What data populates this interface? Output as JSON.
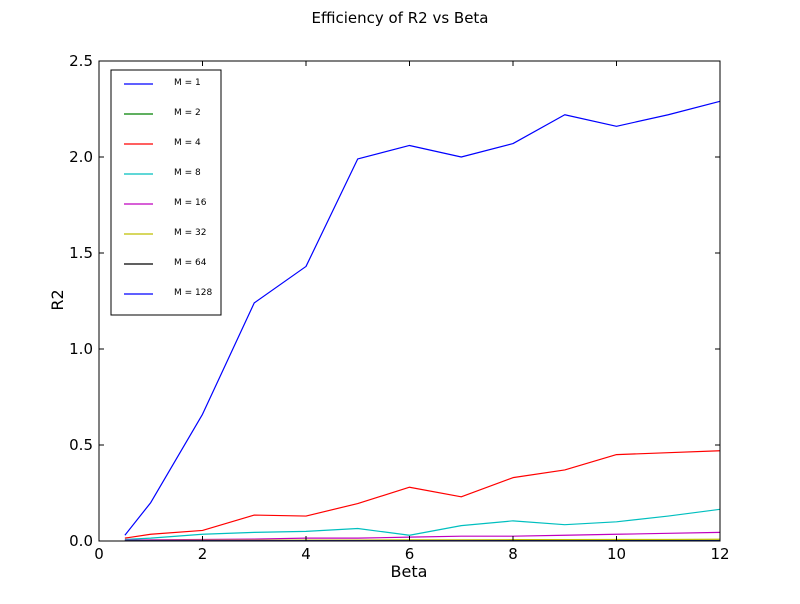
{
  "chart_data": {
    "type": "line",
    "title": "Efficiency of R2 vs Beta",
    "xlabel": "Beta",
    "ylabel": "R2",
    "xlim": [
      0,
      12
    ],
    "ylim": [
      0,
      2.5
    ],
    "xticks": [
      0,
      2,
      4,
      6,
      8,
      10,
      12
    ],
    "xtick_labels": [
      "0",
      "2",
      "4",
      "6",
      "8",
      "10",
      "12"
    ],
    "yticks": [
      0,
      0.5,
      1.0,
      1.5,
      2.0,
      2.5
    ],
    "ytick_labels": [
      "0.0",
      "0.5",
      "1.0",
      "1.5",
      "2.0",
      "2.5"
    ],
    "grid": false,
    "legend_position": "top-left",
    "x": [
      0.5,
      1,
      2,
      3,
      4,
      5,
      6,
      7,
      8,
      9,
      10,
      11,
      12
    ],
    "series": [
      {
        "name": "M = 1",
        "color": "#0000ff",
        "values": [
          0.03,
          0.2,
          0.66,
          1.24,
          1.43,
          1.99,
          2.06,
          2.0,
          2.07,
          2.22,
          2.16,
          2.22,
          2.29
        ]
      },
      {
        "name": "M = 2",
        "color": "#008000",
        "values": [
          0.003,
          0.003,
          0.003,
          0.003,
          0.003,
          0.003,
          0.003,
          0.003,
          0.003,
          0.003,
          0.003,
          0.003,
          0.003
        ]
      },
      {
        "name": "M = 4",
        "color": "#ff0000",
        "values": [
          0.015,
          0.035,
          0.055,
          0.135,
          0.13,
          0.195,
          0.28,
          0.23,
          0.33,
          0.37,
          0.45,
          0.46,
          0.47
        ]
      },
      {
        "name": "M = 8",
        "color": "#00bfbf",
        "values": [
          0.008,
          0.015,
          0.035,
          0.045,
          0.05,
          0.065,
          0.03,
          0.08,
          0.105,
          0.085,
          0.1,
          0.13,
          0.165
        ]
      },
      {
        "name": "M = 16",
        "color": "#bf00bf",
        "values": [
          0.004,
          0.006,
          0.008,
          0.01,
          0.015,
          0.015,
          0.02,
          0.025,
          0.025,
          0.03,
          0.035,
          0.04,
          0.045
        ]
      },
      {
        "name": "M = 32",
        "color": "#bfbf00",
        "values": [
          0.002,
          0.003,
          0.004,
          0.004,
          0.005,
          0.005,
          0.006,
          0.006,
          0.007,
          0.007,
          0.008,
          0.008,
          0.009
        ]
      },
      {
        "name": "M = 64",
        "color": "#000000",
        "values": [
          0.001,
          0.001,
          0.001,
          0.001,
          0.001,
          0.001,
          0.001,
          0.001,
          0.001,
          0.001,
          0.001,
          0.001,
          0.001
        ]
      },
      {
        "name": "M = 128",
        "color": "#0000ff",
        "values": [
          0.0005,
          0.0005,
          0.0005,
          0.0005,
          0.0005,
          0.0005,
          0.0005,
          0.0005,
          0.0005,
          0.0005,
          0.0005,
          0.0005,
          0.0005
        ]
      }
    ]
  }
}
